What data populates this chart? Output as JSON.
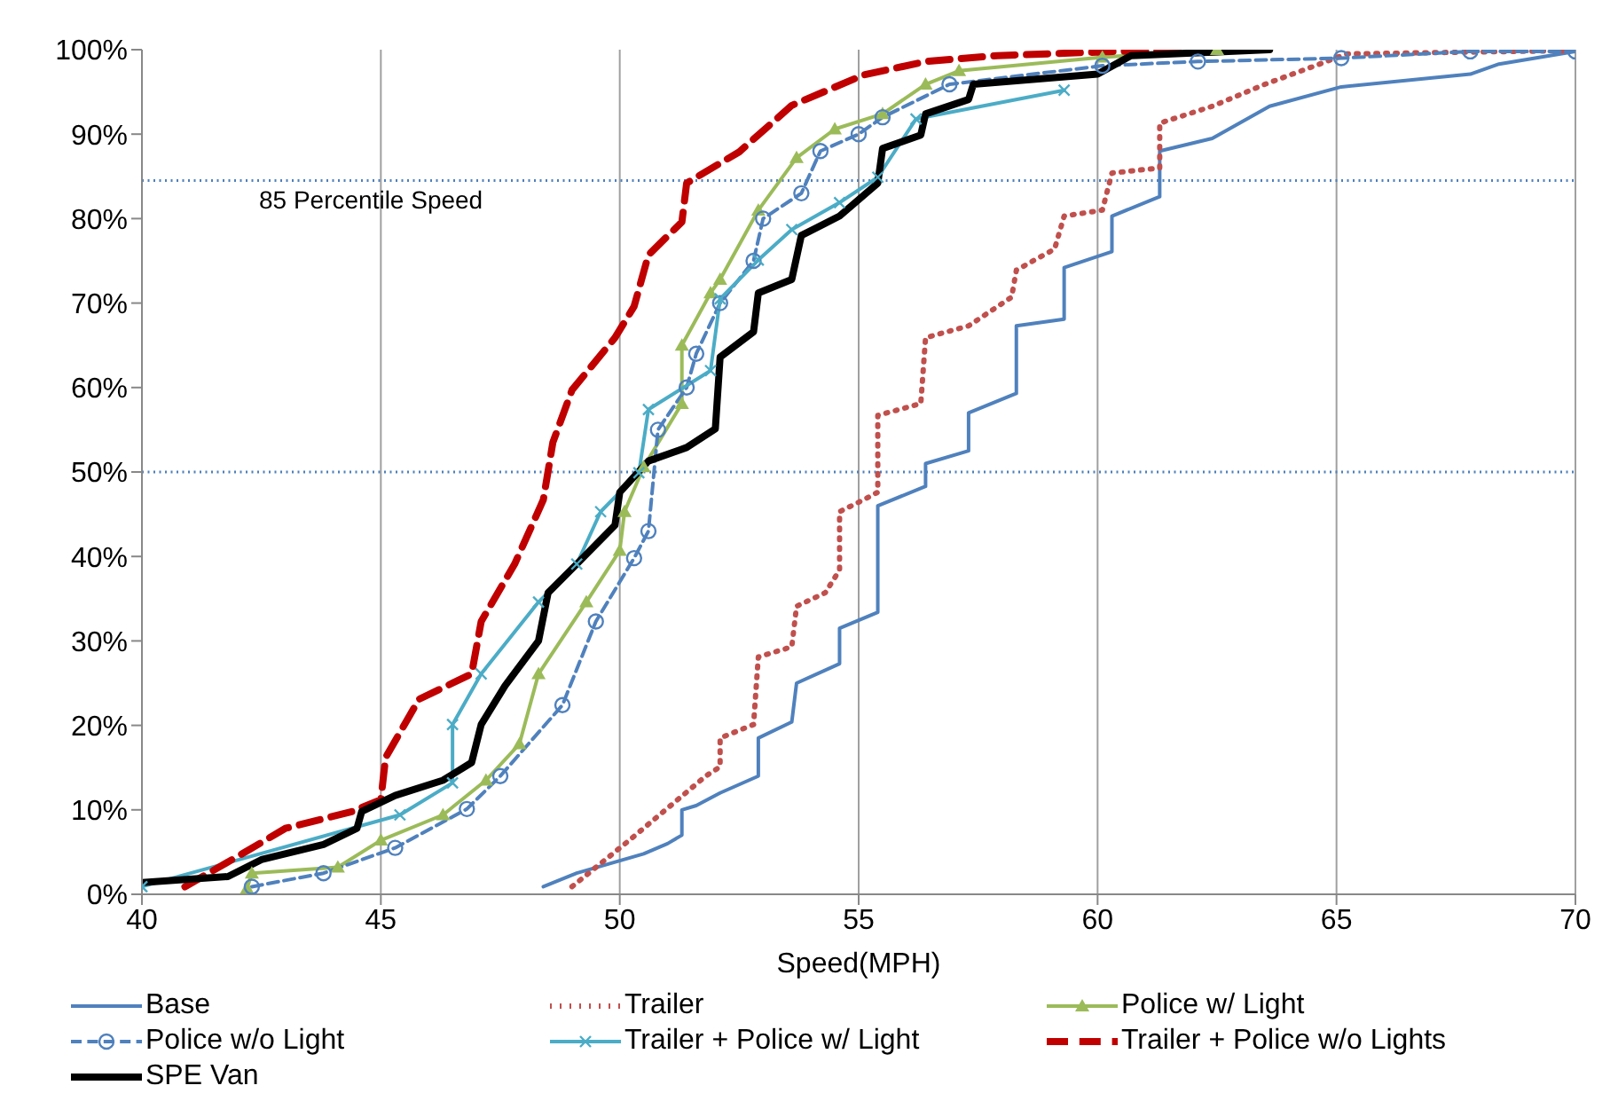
{
  "chart_data": {
    "type": "line",
    "xlabel": "Speed(MPH)",
    "xlim": [
      40,
      70
    ],
    "xticks": [
      40,
      45,
      50,
      55,
      60,
      65,
      70
    ],
    "ylim": [
      0,
      100
    ],
    "yticks": [
      {
        "value": 0,
        "label": "0%"
      },
      {
        "value": 10,
        "label": "10%"
      },
      {
        "value": 20,
        "label": "20%"
      },
      {
        "value": 30,
        "label": "30%"
      },
      {
        "value": 40,
        "label": "40%"
      },
      {
        "value": 50,
        "label": "50%"
      },
      {
        "value": 60,
        "label": "60%"
      },
      {
        "value": 70,
        "label": "70%"
      },
      {
        "value": 80,
        "label": "80%"
      },
      {
        "value": 90,
        "label": "90%"
      },
      {
        "value": 100,
        "label": "100%"
      }
    ],
    "grid": "x",
    "legend": "bottom",
    "ref_lines": [
      {
        "axis": "y",
        "value": 84.5,
        "label": "85 Percentile Speed",
        "color": "#4f81bd",
        "line_style": "dotted"
      },
      {
        "axis": "y",
        "value": 50,
        "label": null,
        "color": "#4f81bd",
        "line_style": "dotted"
      }
    ],
    "series": [
      {
        "name": "Base",
        "color": "#4f81bd",
        "line_style": "solid",
        "marker": "none",
        "x": [
          48.4,
          49.1,
          50.5,
          51.0,
          51.3,
          51.3,
          51.6,
          52.1,
          52.9,
          52.9,
          53.6,
          53.7,
          54.6,
          54.6,
          55.4,
          55.4,
          56.4,
          56.4,
          57.3,
          57.3,
          58.3,
          58.3,
          59.3,
          59.3,
          60.3,
          60.3,
          61.3,
          61.3,
          62.4,
          63.6,
          65.1,
          67.8,
          68.4,
          70
        ],
        "values": [
          0.9,
          2.5,
          4.8,
          6,
          7,
          10,
          10.5,
          12,
          14,
          18.5,
          20.4,
          25,
          27.3,
          31.5,
          33.4,
          46,
          48.3,
          51,
          52.5,
          57,
          59.3,
          67.3,
          68.1,
          74.2,
          76.1,
          80.3,
          82.6,
          88,
          89.5,
          93.3,
          95.6,
          97.1,
          98.3,
          99.8
        ]
      },
      {
        "name": "Trailer",
        "color": "#c0504d",
        "line_style": "dotted",
        "marker": "none",
        "x": [
          49.0,
          50.2,
          51.8,
          52.1,
          52.1,
          52.8,
          52.9,
          53.6,
          53.7,
          54.3,
          54.6,
          54.6,
          55.1,
          55.4,
          55.4,
          56.3,
          56.4,
          57.3,
          58.2,
          58.3,
          59.1,
          59.3,
          60.1,
          60.3,
          61.3,
          61.3,
          62.4,
          63.5,
          64.6,
          65.2,
          70
        ],
        "values": [
          0.9,
          6.4,
          14,
          15.1,
          18.5,
          20.1,
          28.1,
          29.3,
          34.1,
          35.7,
          38.4,
          45.3,
          46.7,
          47.6,
          56.7,
          58.1,
          65.9,
          67.3,
          70.7,
          73.9,
          76.4,
          80.3,
          81,
          85.4,
          86,
          91.3,
          93.3,
          95.9,
          98.2,
          99.5,
          99.9
        ]
      },
      {
        "name": "Police w/ Light",
        "color": "#9bbb59",
        "line_style": "solid",
        "marker": "triangle",
        "x": [
          42.2,
          42.3,
          44.1,
          45.0,
          46.3,
          47.2,
          47.9,
          48.3,
          49.3,
          50.0,
          50.1,
          50.5,
          51.3,
          51.3,
          51.9,
          52.1,
          52.9,
          53.7,
          54.5,
          55.5,
          56.4,
          57.1,
          60.1,
          62.5
        ],
        "values": [
          0.7,
          2.5,
          3.2,
          6.4,
          9.4,
          13.5,
          17.8,
          26.1,
          34.6,
          40.7,
          45.3,
          50.6,
          58.1,
          65,
          71.2,
          72.8,
          81,
          87.2,
          90.6,
          92.4,
          95.9,
          97.5,
          99.1,
          100
        ]
      },
      {
        "name": "Police w/o Light",
        "color": "#4f81bd",
        "line_style": "dashed",
        "marker": "circle",
        "x": [
          42.3,
          43.8,
          45.3,
          46.8,
          47.5,
          48.8,
          49.5,
          50.3,
          50.6,
          50.8,
          51.4,
          51.6,
          52.1,
          52.8,
          53.0,
          53.8,
          54.2,
          55.0,
          55.5,
          56.9,
          60.1,
          62.1,
          65.1,
          67.8,
          70
        ],
        "values": [
          0.9,
          2.5,
          5.5,
          10.1,
          14,
          22.4,
          32.3,
          39.8,
          43,
          55,
          60,
          64,
          70,
          75,
          80,
          83,
          88,
          90,
          92,
          95.9,
          98.1,
          98.6,
          99,
          99.8,
          99.8
        ]
      },
      {
        "name": "Trailer + Police w/ Light",
        "color": "#4bacc6",
        "line_style": "solid",
        "marker": "cross",
        "x": [
          40.0,
          45.4,
          46.5,
          46.5,
          47.1,
          48.3,
          49.1,
          49.6,
          50.4,
          50.6,
          51.9,
          52.1,
          52.9,
          53.6,
          54.6,
          55.4,
          56.2,
          59.3
        ],
        "values": [
          0.9,
          9.4,
          13.2,
          20.1,
          26.1,
          34.6,
          39.1,
          45.3,
          49.9,
          57.4,
          62,
          70.5,
          75.1,
          78.7,
          81.9,
          84.9,
          91.8,
          95.2
        ]
      },
      {
        "name": "Trailer + Police w/o Lights",
        "color": "#c00000",
        "line_style": "dashed",
        "marker": "none",
        "x": [
          40.9,
          42.1,
          43.0,
          44.4,
          45.0,
          45.1,
          45.8,
          46.9,
          47.1,
          47.8,
          48.4,
          48.6,
          49.0,
          49.9,
          50.3,
          50.6,
          51.3,
          51.4,
          52.5,
          53.6,
          55.1,
          56.4,
          57.9,
          60.4,
          63.0
        ],
        "values": [
          0.9,
          4.8,
          7.8,
          9.8,
          11.2,
          16.2,
          23.1,
          26.1,
          32.3,
          39.1,
          46.7,
          53.5,
          59.7,
          65.9,
          69.6,
          75.7,
          79.6,
          84.2,
          87.9,
          93.4,
          97,
          98.6,
          99.3,
          99.8,
          100
        ]
      },
      {
        "name": "SPE Van",
        "color": "#000000",
        "line_style": "solid",
        "marker": "none",
        "x": [
          40.0,
          41.8,
          42.5,
          43.8,
          44.5,
          44.6,
          45.3,
          46.3,
          46.9,
          47.1,
          47.6,
          48.3,
          48.5,
          49.1,
          49.9,
          50.0,
          50.6,
          51.4,
          52.0,
          52.1,
          52.8,
          52.9,
          53.6,
          53.8,
          54.6,
          55.4,
          55.5,
          56.3,
          56.4,
          57.3,
          57.4,
          60.0,
          60.7,
          63.6
        ],
        "values": [
          1.4,
          2.1,
          4.1,
          5.9,
          7.8,
          9.8,
          11.7,
          13.5,
          15.6,
          20.1,
          24.7,
          30,
          35.7,
          39.1,
          43.7,
          47.6,
          51.3,
          52.9,
          55.1,
          63.6,
          66.6,
          71.2,
          72.8,
          78,
          80.3,
          84.2,
          88.3,
          89.9,
          92.4,
          94.1,
          95.9,
          97.1,
          99.3,
          100
        ]
      }
    ]
  }
}
